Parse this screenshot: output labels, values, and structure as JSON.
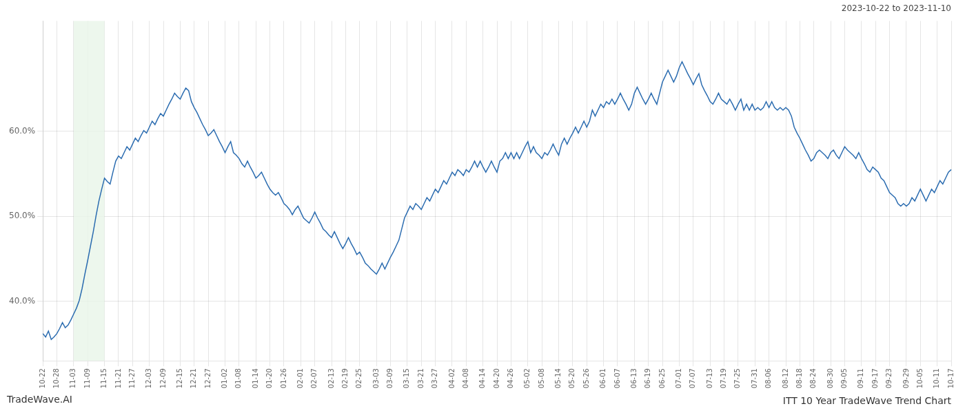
{
  "chart_data": {
    "type": "line",
    "title": "ITT 10 Year TradeWave Trend Chart",
    "subtitle": "2023-10-22 to 2023-11-10",
    "annotations": [
      "TradeWave.AI"
    ],
    "categories": [
      "10-22",
      null,
      null,
      null,
      null,
      "10-28",
      null,
      null,
      null,
      null,
      null,
      "11-03",
      null,
      null,
      null,
      null,
      "11-09",
      null,
      null,
      null,
      null,
      null,
      "11-15",
      null,
      null,
      null,
      null,
      "11-21",
      null,
      null,
      null,
      null,
      "11-27",
      null,
      null,
      null,
      null,
      null,
      "12-03",
      null,
      null,
      null,
      null,
      "12-09",
      null,
      null,
      null,
      null,
      null,
      "12-15",
      null,
      null,
      null,
      null,
      "12-21",
      null,
      null,
      null,
      null,
      "12-27",
      null,
      null,
      null,
      null,
      null,
      "01-02",
      null,
      null,
      null,
      null,
      "01-08",
      null,
      null,
      null,
      null,
      null,
      "01-14",
      null,
      null,
      null,
      null,
      "01-20",
      null,
      null,
      null,
      null,
      "01-26",
      null,
      null,
      null,
      null,
      null,
      "02-01",
      null,
      null,
      null,
      null,
      "02-07",
      null,
      null,
      null,
      null,
      null,
      "02-13",
      null,
      null,
      null,
      null,
      "02-19",
      null,
      null,
      null,
      null,
      "02-25",
      null,
      null,
      null,
      null,
      null,
      "03-03",
      null,
      null,
      null,
      null,
      "03-09",
      null,
      null,
      null,
      null,
      null,
      "03-15",
      null,
      null,
      null,
      null,
      "03-21",
      null,
      null,
      null,
      null,
      "03-27",
      null,
      null,
      null,
      null,
      null,
      "04-02",
      null,
      null,
      null,
      null,
      "04-08",
      null,
      null,
      null,
      null,
      null,
      "04-14",
      null,
      null,
      null,
      null,
      "04-20",
      null,
      null,
      null,
      null,
      "04-26",
      null,
      null,
      null,
      null,
      null,
      "05-02",
      null,
      null,
      null,
      null,
      "05-08",
      null,
      null,
      null,
      null,
      null,
      "05-14",
      null,
      null,
      null,
      null,
      "05-20",
      null,
      null,
      null,
      null,
      "05-26",
      null,
      null,
      null,
      null,
      null,
      "06-01",
      null,
      null,
      null,
      null,
      "06-07",
      null,
      null,
      null,
      null,
      null,
      "06-13",
      null,
      null,
      null,
      null,
      "06-19",
      null,
      null,
      null,
      null,
      "06-25",
      null,
      null,
      null,
      null,
      null,
      "07-01",
      null,
      null,
      null,
      null,
      "07-07",
      null,
      null,
      null,
      null,
      null,
      "07-13",
      null,
      null,
      null,
      null,
      "07-19",
      null,
      null,
      null,
      null,
      "07-25",
      null,
      null,
      null,
      null,
      null,
      "07-31",
      null,
      null,
      null,
      null,
      "08-06",
      null,
      null,
      null,
      null,
      null,
      "08-12",
      null,
      null,
      null,
      null,
      "08-18",
      null,
      null,
      null,
      null,
      "08-24",
      null,
      null,
      null,
      null,
      null,
      "08-30",
      null,
      null,
      null,
      null,
      "09-05",
      null,
      null,
      null,
      null,
      null,
      "09-11",
      null,
      null,
      null,
      null,
      "09-17",
      null,
      null,
      null,
      null,
      "09-23",
      null,
      null,
      null,
      null,
      null,
      "09-29",
      null,
      null,
      null,
      null,
      "10-05",
      null,
      null,
      null,
      null,
      null,
      "10-11",
      null,
      null,
      null,
      null,
      "10-17"
    ],
    "values": [
      36.2,
      35.8,
      36.5,
      35.5,
      35.8,
      36.2,
      36.8,
      37.5,
      36.9,
      37.2,
      37.8,
      38.5,
      39.2,
      40.1,
      41.5,
      43.2,
      44.8,
      46.5,
      48.2,
      50.1,
      51.8,
      53.2,
      54.5,
      54.1,
      53.8,
      55.2,
      56.5,
      57.1,
      56.8,
      57.5,
      58.2,
      57.8,
      58.5,
      59.2,
      58.8,
      59.5,
      60.1,
      59.8,
      60.5,
      61.2,
      60.8,
      61.5,
      62.1,
      61.8,
      62.5,
      63.2,
      63.8,
      64.5,
      64.1,
      63.8,
      64.5,
      65.1,
      64.8,
      63.5,
      62.8,
      62.2,
      61.5,
      60.8,
      60.2,
      59.5,
      59.8,
      60.2,
      59.5,
      58.8,
      58.2,
      57.5,
      58.2,
      58.8,
      57.5,
      57.2,
      56.8,
      56.2,
      55.8,
      56.5,
      55.8,
      55.2,
      54.5,
      54.8,
      55.2,
      54.5,
      53.8,
      53.2,
      52.8,
      52.5,
      52.8,
      52.2,
      51.5,
      51.2,
      50.8,
      50.2,
      50.8,
      51.2,
      50.5,
      49.8,
      49.5,
      49.2,
      49.8,
      50.5,
      49.8,
      49.2,
      48.5,
      48.2,
      47.8,
      47.5,
      48.2,
      47.5,
      46.8,
      46.2,
      46.8,
      47.5,
      46.8,
      46.2,
      45.5,
      45.8,
      45.2,
      44.5,
      44.2,
      43.8,
      43.5,
      43.2,
      43.8,
      44.5,
      43.8,
      44.5,
      45.2,
      45.8,
      46.5,
      47.2,
      48.5,
      49.8,
      50.5,
      51.2,
      50.8,
      51.5,
      51.2,
      50.8,
      51.5,
      52.2,
      51.8,
      52.5,
      53.2,
      52.8,
      53.5,
      54.2,
      53.8,
      54.5,
      55.2,
      54.8,
      55.5,
      55.2,
      54.8,
      55.5,
      55.2,
      55.8,
      56.5,
      55.8,
      56.5,
      55.8,
      55.2,
      55.8,
      56.5,
      55.8,
      55.2,
      56.5,
      56.8,
      57.5,
      56.8,
      57.5,
      56.8,
      57.5,
      56.8,
      57.5,
      58.2,
      58.8,
      57.5,
      58.2,
      57.5,
      57.2,
      56.8,
      57.5,
      57.2,
      57.8,
      58.5,
      57.8,
      57.2,
      58.5,
      59.2,
      58.5,
      59.2,
      59.8,
      60.5,
      59.8,
      60.5,
      61.2,
      60.5,
      61.2,
      62.5,
      61.8,
      62.5,
      63.2,
      62.8,
      63.5,
      63.2,
      63.8,
      63.2,
      63.8,
      64.5,
      63.8,
      63.2,
      62.5,
      63.2,
      64.5,
      65.2,
      64.5,
      63.8,
      63.2,
      63.8,
      64.5,
      63.8,
      63.2,
      64.5,
      65.8,
      66.5,
      67.2,
      66.5,
      65.8,
      66.5,
      67.5,
      68.2,
      67.5,
      66.8,
      66.2,
      65.5,
      66.2,
      66.8,
      65.5,
      64.8,
      64.2,
      63.5,
      63.2,
      63.8,
      64.5,
      63.8,
      63.5,
      63.2,
      63.8,
      63.2,
      62.5,
      63.2,
      63.8,
      62.5,
      63.2,
      62.5,
      63.2,
      62.5,
      62.8,
      62.5,
      62.8,
      63.5,
      62.8,
      63.5,
      62.8,
      62.5,
      62.8,
      62.5,
      62.8,
      62.5,
      61.8,
      60.5,
      59.8,
      59.2,
      58.5,
      57.8,
      57.2,
      56.5,
      56.8,
      57.5,
      57.8,
      57.5,
      57.2,
      56.8,
      57.5,
      57.8,
      57.2,
      56.8,
      57.5,
      58.2,
      57.8,
      57.5,
      57.2,
      56.8,
      57.5,
      56.8,
      56.2,
      55.5,
      55.2,
      55.8,
      55.5,
      55.2,
      54.5,
      54.2,
      53.5,
      52.8,
      52.5,
      52.2,
      51.5,
      51.2,
      51.5,
      51.2,
      51.5,
      52.2,
      51.8,
      52.5,
      53.2,
      52.5,
      51.8,
      52.5,
      53.2,
      52.8,
      53.5,
      54.2,
      53.8,
      54.5,
      55.2,
      55.5
    ],
    "color": "#2B6CB0",
    "highlight": {
      "start": "11-03",
      "end": "11-15",
      "color": "#e8f5e9"
    },
    "ylim": [
      33,
      73
    ],
    "yticks": [
      {
        "value": 40.0,
        "label": "40.0%"
      },
      {
        "value": 50.0,
        "label": "50.0%"
      },
      {
        "value": 60.0,
        "label": "60.0%"
      }
    ],
    "grid": true
  }
}
